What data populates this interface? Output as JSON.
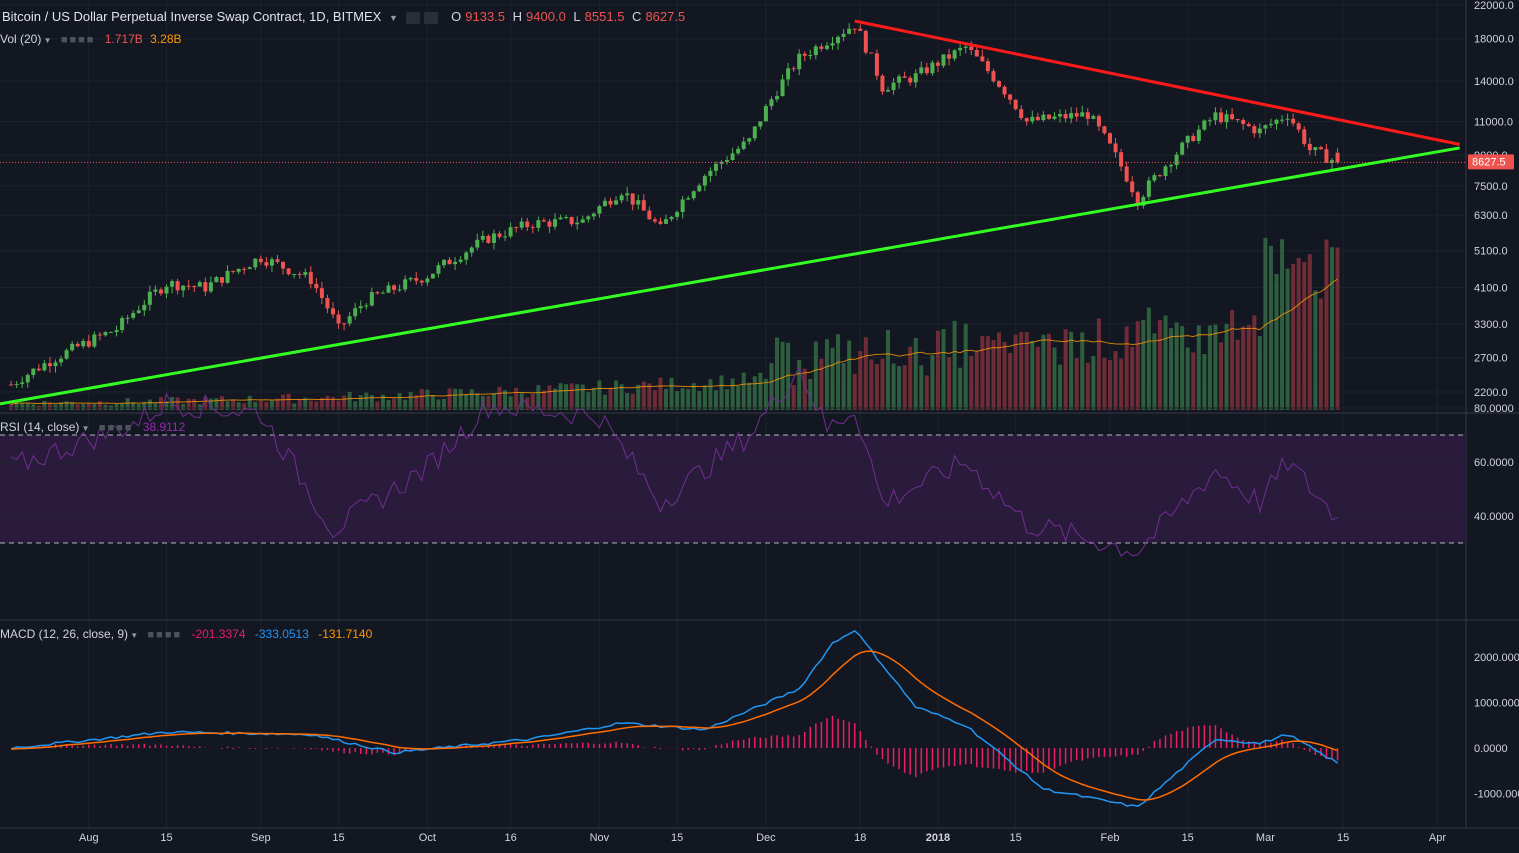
{
  "header": {
    "title": "Bitcoin / US Dollar Perpetual Inverse Swap Contract, 1D, BITMEX",
    "dropdown_icon": "chevron-down-icon",
    "ohlc": [
      {
        "label": "O",
        "value": "9133.5"
      },
      {
        "label": "H",
        "value": "9400.0"
      },
      {
        "label": "L",
        "value": "8551.5"
      },
      {
        "label": "C",
        "value": "8627.5"
      }
    ]
  },
  "indicators": {
    "volume": {
      "name": "Vol (20)",
      "v1": "1.717B",
      "v2": "3.28B"
    },
    "rsi": {
      "name": "RSI (14, close)",
      "value": "38.9112"
    },
    "macd": {
      "name": "MACD (12, 26, close, 9)",
      "hist": "-201.3374",
      "macd": "-333.0513",
      "signal": "-131.7140"
    }
  },
  "colors": {
    "up": "#4caf50",
    "down": "#ef5350",
    "bg": "#131722",
    "resistance": "#ff1a1a",
    "support": "#33ff22",
    "rsi": "#6f2f8f",
    "macd_line": "#2196f3",
    "signal_line": "#ff6d00",
    "hist": "#e91e63"
  },
  "chart_data": {
    "type": "candlestick",
    "price_axis_ticks": [
      "22000.0",
      "18000.0",
      "14000.0",
      "11000.0",
      "9000.0",
      "7500.0",
      "6300.0",
      "5100.0",
      "4100.0",
      "3300.0",
      "2700.0",
      "2200.0"
    ],
    "price_axis_scale": "log",
    "last_price_label": "8627.5",
    "x_tick_labels": [
      "Aug",
      "15",
      "Sep",
      "15",
      "Oct",
      "16",
      "Nov",
      "15",
      "Dec",
      "18",
      "2018",
      "15",
      "Feb",
      "15",
      "Mar",
      "15",
      "Apr"
    ],
    "rsi_axis_ticks": [
      "80.0000",
      "60.0000",
      "40.0000"
    ],
    "rsi_bands": [
      30,
      70
    ],
    "macd_axis_ticks": [
      "2000.000",
      "1000.000",
      "0.0000",
      "-1000.000"
    ],
    "price_anchors": [
      [
        "2017-07-18",
        2300
      ],
      [
        "2017-07-25",
        2650
      ],
      [
        "2017-08-06",
        3200
      ],
      [
        "2017-08-15",
        4200
      ],
      [
        "2017-08-22",
        4100
      ],
      [
        "2017-09-01",
        4900
      ],
      [
        "2017-09-10",
        4300
      ],
      [
        "2017-09-15",
        3200
      ],
      [
        "2017-09-20",
        3800
      ],
      [
        "2017-10-01",
        4400
      ],
      [
        "2017-10-12",
        5500
      ],
      [
        "2017-10-20",
        6000
      ],
      [
        "2017-10-29",
        6100
      ],
      [
        "2017-11-05",
        7300
      ],
      [
        "2017-11-12",
        5800
      ],
      [
        "2017-11-20",
        8000
      ],
      [
        "2017-11-28",
        9800
      ],
      [
        "2017-12-07",
        16000
      ],
      [
        "2017-12-17",
        19600
      ],
      [
        "2017-12-22",
        13500
      ],
      [
        "2017-12-28",
        14400
      ],
      [
        "2018-01-06",
        17100
      ],
      [
        "2018-01-17",
        11000
      ],
      [
        "2018-01-28",
        11500
      ],
      [
        "2018-02-06",
        6900
      ],
      [
        "2018-02-12",
        8800
      ],
      [
        "2018-02-20",
        11400
      ],
      [
        "2018-02-28",
        10400
      ],
      [
        "2018-03-05",
        11500
      ],
      [
        "2018-03-09",
        9300
      ],
      [
        "2018-03-14",
        8627.5
      ]
    ],
    "resistance_line": {
      "from": [
        "2017-12-17",
        20000
      ],
      "to": [
        "2018-04-05",
        9600
      ]
    },
    "support_line": {
      "from": [
        "2017-07-16",
        2050
      ],
      "to": [
        "2018-04-05",
        9400
      ]
    },
    "rsi_anchors": [
      [
        "2017-07-18",
        58
      ],
      [
        "2017-08-10",
        75
      ],
      [
        "2017-08-15",
        82
      ],
      [
        "2017-09-01",
        78
      ],
      [
        "2017-09-14",
        35
      ],
      [
        "2017-10-01",
        58
      ],
      [
        "2017-10-12",
        81
      ],
      [
        "2017-11-01",
        77
      ],
      [
        "2017-11-12",
        45
      ],
      [
        "2017-11-28",
        70
      ],
      [
        "2017-12-07",
        95
      ],
      [
        "2017-12-12",
        72
      ],
      [
        "2017-12-17",
        80
      ],
      [
        "2017-12-22",
        45
      ],
      [
        "2018-01-06",
        60
      ],
      [
        "2018-01-17",
        37
      ],
      [
        "2018-02-06",
        27
      ],
      [
        "2018-02-20",
        57
      ],
      [
        "2018-02-28",
        45
      ],
      [
        "2018-03-05",
        60
      ],
      [
        "2018-03-14",
        39
      ]
    ],
    "macd_anchors": [
      [
        "2017-07-18",
        0
      ],
      [
        "2017-08-15",
        350
      ],
      [
        "2017-09-10",
        300
      ],
      [
        "2017-09-25",
        -100
      ],
      [
        "2017-10-20",
        200
      ],
      [
        "2017-11-05",
        550
      ],
      [
        "2017-11-20",
        400
      ],
      [
        "2017-12-07",
        1300
      ],
      [
        "2017-12-13",
        2300
      ],
      [
        "2017-12-17",
        2600
      ],
      [
        "2017-12-28",
        900
      ],
      [
        "2018-01-06",
        500
      ],
      [
        "2018-01-20",
        -900
      ],
      [
        "2018-02-06",
        -1300
      ],
      [
        "2018-02-20",
        200
      ],
      [
        "2018-02-28",
        100
      ],
      [
        "2018-03-05",
        300
      ],
      [
        "2018-03-14",
        -333
      ]
    ]
  }
}
